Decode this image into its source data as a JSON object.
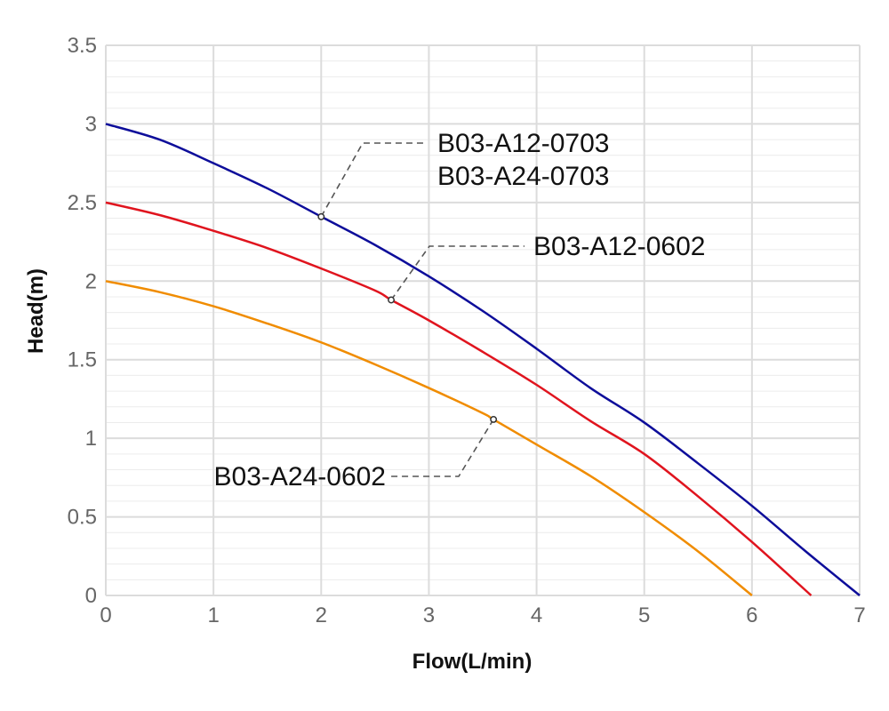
{
  "chart_data": {
    "type": "line",
    "xlabel": "Flow(L/min)",
    "ylabel": "Head(m)",
    "xlim": [
      0,
      7
    ],
    "ylim": [
      0,
      3.5
    ],
    "x_ticks": [
      "0",
      "1",
      "2",
      "3",
      "4",
      "5",
      "6",
      "7"
    ],
    "y_ticks": [
      "0",
      "0.5",
      "1",
      "1.5",
      "2",
      "2.5",
      "3",
      "3.5"
    ],
    "grid": true,
    "minor_y_grid_step": 0.1,
    "series": [
      {
        "name": "B03-A12-0703 / B03-A24-0703",
        "color": "#0d0d9a",
        "x": [
          0,
          0.5,
          1,
          1.5,
          2,
          2.5,
          3,
          3.5,
          4,
          4.5,
          5,
          5.5,
          6,
          6.5,
          7
        ],
        "y": [
          3.0,
          2.9,
          2.75,
          2.59,
          2.41,
          2.23,
          2.03,
          1.81,
          1.57,
          1.32,
          1.1,
          0.84,
          0.57,
          0.28,
          0.0
        ]
      },
      {
        "name": "B03-A12-0602",
        "color": "#e0141e",
        "x": [
          0,
          0.5,
          1,
          1.5,
          2,
          2.5,
          2.65,
          3,
          3.5,
          4,
          4.5,
          5,
          5.5,
          6,
          6.55
        ],
        "y": [
          2.5,
          2.42,
          2.32,
          2.21,
          2.08,
          1.94,
          1.88,
          1.75,
          1.55,
          1.34,
          1.11,
          0.9,
          0.63,
          0.34,
          0.0
        ]
      },
      {
        "name": "B03-A24-0602",
        "color": "#f08c00",
        "x": [
          0,
          0.5,
          1,
          1.5,
          2,
          2.5,
          3,
          3.5,
          3.6,
          4,
          4.5,
          5,
          5.5,
          6
        ],
        "y": [
          2.0,
          1.93,
          1.84,
          1.73,
          1.61,
          1.47,
          1.32,
          1.16,
          1.12,
          0.96,
          0.76,
          0.53,
          0.28,
          0.0
        ]
      }
    ],
    "annotations": [
      {
        "lines": [
          "B03-A12-0703",
          "B03-A24-0703"
        ],
        "series": 0,
        "point": [
          2.0,
          2.41
        ]
      },
      {
        "lines": [
          "B03-A12-0602"
        ],
        "series": 1,
        "point": [
          2.65,
          1.88
        ]
      },
      {
        "lines": [
          "B03-A24-0602"
        ],
        "series": 2,
        "point": [
          3.6,
          1.12
        ]
      }
    ]
  }
}
